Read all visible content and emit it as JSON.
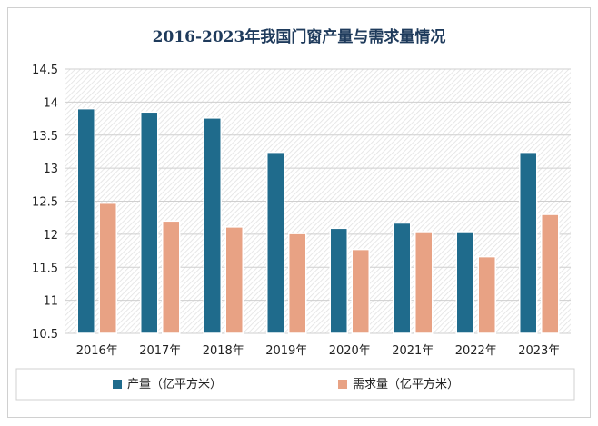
{
  "chart_data": {
    "type": "bar",
    "title": "2016-2023年我国门窗产量与需求量情况",
    "categories": [
      "2016年",
      "2017年",
      "2018年",
      "2019年",
      "2020年",
      "2021年",
      "2022年",
      "2023年"
    ],
    "series": [
      {
        "name": "产量（亿平方米）",
        "color": "#1f6b8c",
        "values": [
          13.9,
          13.85,
          13.76,
          13.24,
          12.09,
          12.17,
          12.04,
          13.24
        ]
      },
      {
        "name": "需求量（亿平方米）",
        "color": "#e8a284",
        "values": [
          12.47,
          12.2,
          12.11,
          12.01,
          11.77,
          12.04,
          11.66,
          12.3
        ]
      }
    ],
    "ylim": [
      10.5,
      14.5
    ],
    "yticks": [
      "10.5",
      "11",
      "11.5",
      "12",
      "12.5",
      "13",
      "13.5",
      "14",
      "14.5"
    ],
    "xlabel": "",
    "ylabel": "",
    "legend_position": "bottom"
  }
}
